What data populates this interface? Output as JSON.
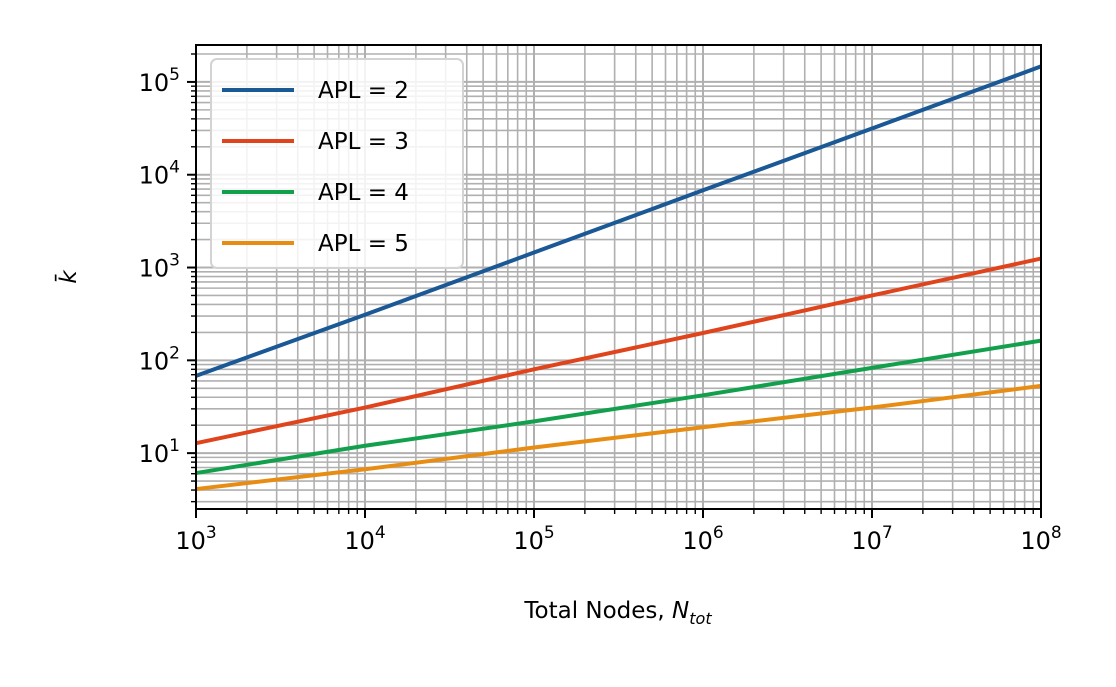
{
  "chart_data": {
    "type": "line",
    "title": "",
    "xlabel": "Total Nodes, ",
    "xlabel_math": "N",
    "xlabel_sub": "tot",
    "ylabel": "k̄",
    "xscale": "log",
    "yscale": "log",
    "xlim": [
      1000,
      100000000
    ],
    "ylim": [
      2.5,
      250000
    ],
    "grid": "major and minor",
    "legend_position": "upper-left",
    "x_ticks": [
      {
        "base": "10",
        "exp": "3",
        "value": 1000
      },
      {
        "base": "10",
        "exp": "4",
        "value": 10000
      },
      {
        "base": "10",
        "exp": "5",
        "value": 100000
      },
      {
        "base": "10",
        "exp": "6",
        "value": 1000000
      },
      {
        "base": "10",
        "exp": "7",
        "value": 10000000
      },
      {
        "base": "10",
        "exp": "8",
        "value": 100000000
      }
    ],
    "y_ticks": [
      {
        "base": "10",
        "exp": "1",
        "value": 10
      },
      {
        "base": "10",
        "exp": "2",
        "value": 100
      },
      {
        "base": "10",
        "exp": "3",
        "value": 1000
      },
      {
        "base": "10",
        "exp": "4",
        "value": 10000
      },
      {
        "base": "10",
        "exp": "5",
        "value": 100000
      }
    ],
    "x": [
      1000,
      10000,
      100000,
      1000000,
      10000000,
      100000000
    ],
    "series": [
      {
        "name": "APL = 2",
        "color": "#1a5896",
        "values": [
          68,
          310,
          1450,
          6800,
          31500,
          147000
        ]
      },
      {
        "name": "APL = 3",
        "color": "#e0441c",
        "values": [
          12.8,
          31,
          80,
          197,
          500,
          1250
        ]
      },
      {
        "name": "APL = 4",
        "color": "#12a04c",
        "values": [
          6.1,
          12,
          22,
          42,
          83,
          163
        ]
      },
      {
        "name": "APL = 5",
        "color": "#e88d14",
        "values": [
          4.1,
          6.7,
          11.5,
          19,
          31,
          53
        ]
      }
    ]
  }
}
